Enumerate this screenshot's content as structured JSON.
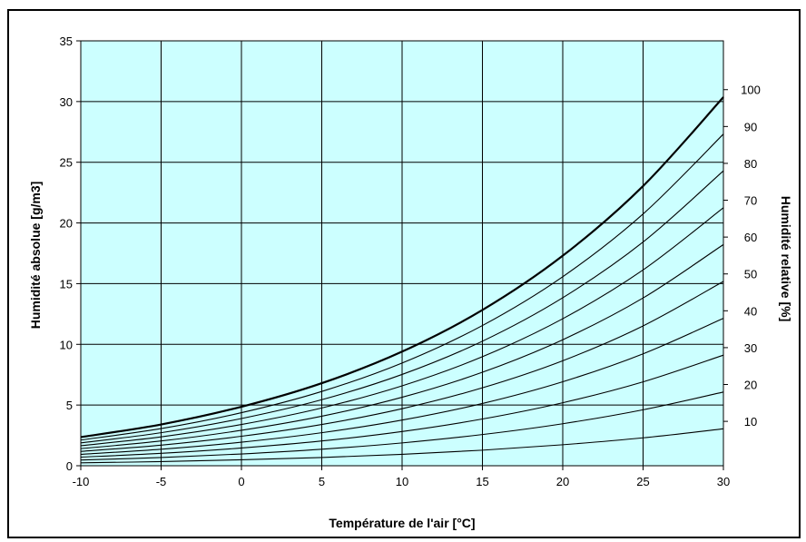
{
  "chart_data": {
    "type": "line",
    "title": "",
    "xlabel": "Température de l'air [°C]",
    "ylabel": "Humidité absolue [g/m3]",
    "y2label": "Humidité relative [%]",
    "xlim": [
      -10,
      30
    ],
    "ylim": [
      0,
      35
    ],
    "xticks": [
      "-10",
      "-5",
      "0",
      "5",
      "10",
      "15",
      "20",
      "25",
      "30"
    ],
    "yticks": [
      "0",
      "5",
      "10",
      "15",
      "20",
      "25",
      "30",
      "35"
    ],
    "rh_labels": [
      "10",
      "20",
      "30",
      "40",
      "50",
      "60",
      "70",
      "80",
      "90",
      "100"
    ],
    "grid": true,
    "plot_background": "#ccffff",
    "x": [
      -10,
      -5,
      0,
      5,
      10,
      15,
      20,
      25,
      30
    ],
    "series": [
      {
        "values": [
          0.24,
          0.34,
          0.49,
          0.68,
          0.94,
          1.28,
          1.73,
          2.3,
          3.04
        ]
      },
      {
        "values": [
          0.47,
          0.68,
          0.97,
          1.36,
          1.88,
          2.57,
          3.46,
          4.61,
          6.07
        ]
      },
      {
        "values": [
          0.71,
          1.02,
          1.46,
          2.04,
          2.82,
          3.85,
          5.19,
          6.91,
          9.11
        ]
      },
      {
        "values": [
          0.94,
          1.36,
          1.94,
          2.72,
          3.76,
          5.13,
          6.92,
          9.22,
          12.14
        ]
      },
      {
        "values": [
          1.18,
          1.7,
          2.43,
          3.4,
          4.7,
          6.42,
          8.65,
          11.52,
          15.18
        ]
      },
      {
        "values": [
          1.41,
          2.04,
          2.92,
          4.08,
          5.64,
          7.7,
          10.38,
          13.82,
          18.22
        ]
      },
      {
        "values": [
          1.65,
          2.38,
          3.4,
          4.76,
          6.58,
          8.98,
          12.11,
          16.13,
          21.25
        ]
      },
      {
        "values": [
          1.88,
          2.72,
          3.89,
          5.44,
          7.52,
          10.26,
          13.84,
          18.43,
          24.29
        ]
      },
      {
        "values": [
          2.12,
          3.06,
          4.37,
          6.12,
          8.46,
          11.55,
          15.57,
          20.74,
          27.32
        ]
      },
      {
        "values": [
          2.36,
          3.4,
          4.86,
          6.8,
          9.4,
          12.83,
          17.3,
          23.04,
          30.36
        ]
      }
    ]
  }
}
